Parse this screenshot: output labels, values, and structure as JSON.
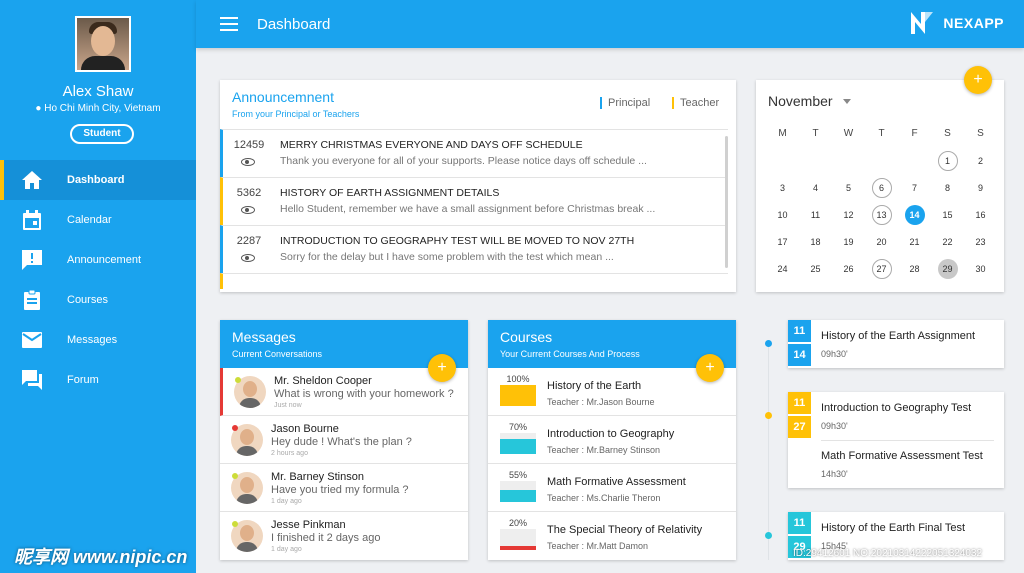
{
  "user": {
    "name": "Alex Shaw",
    "location": "Ho Chi Minh City, Vietnam",
    "role": "Student"
  },
  "nav": [
    {
      "label": "Dashboard",
      "icon": "home-icon"
    },
    {
      "label": "Calendar",
      "icon": "calendar-icon"
    },
    {
      "label": "Announcement",
      "icon": "announcement-icon"
    },
    {
      "label": "Courses",
      "icon": "clipboard-icon"
    },
    {
      "label": "Messages",
      "icon": "mail-icon"
    },
    {
      "label": "Forum",
      "icon": "forum-icon"
    }
  ],
  "header": {
    "title": "Dashboard",
    "brand": "NEXAPP"
  },
  "announcements": {
    "title": "Announcemnent",
    "subtitle": "From your Principal or Teachers",
    "legend": {
      "principal": "Principal",
      "teacher": "Teacher"
    },
    "items": [
      {
        "count": "12459",
        "title": "MERRY CHRISTMAS EVERYONE AND DAYS OFF SCHEDULE",
        "preview": "Thank you everyone for all of your supports. Please notice days off schedule ...",
        "source": "principal"
      },
      {
        "count": "5362",
        "title": "HISTORY OF EARTH ASSIGNMENT DETAILS",
        "preview": "Hello Student, remember we have a small assignment before Christmas break ...",
        "source": "teacher"
      },
      {
        "count": "2287",
        "title": "INTRODUCTION TO GEOGRAPHY TEST WILL BE MOVED TO NOV 27TH",
        "preview": "Sorry for the delay but I have some problem with the test which mean ...",
        "source": "principal"
      }
    ]
  },
  "calendar": {
    "month": "November",
    "add": "+",
    "weekdays": [
      "M",
      "T",
      "W",
      "T",
      "F",
      "S",
      "S"
    ],
    "weeks": [
      [
        "",
        "",
        "",
        "",
        "",
        "1",
        "2"
      ],
      [
        "3",
        "4",
        "5",
        "6",
        "7",
        "8",
        "9"
      ],
      [
        "10",
        "11",
        "12",
        "13",
        "14",
        "15",
        "16"
      ],
      [
        "17",
        "18",
        "19",
        "20",
        "21",
        "22",
        "23"
      ],
      [
        "24",
        "25",
        "26",
        "27",
        "28",
        "29",
        "30"
      ]
    ],
    "ringed": [
      "1",
      "6",
      "13",
      "27"
    ],
    "today": "14",
    "grayed": [
      "29"
    ]
  },
  "messages": {
    "title": "Messages",
    "subtitle": "Current Conversations",
    "add": "+",
    "items": [
      {
        "name": "Mr. Sheldon Cooper",
        "text": "What is wrong with your homework ?",
        "when": "Just now",
        "status": "online"
      },
      {
        "name": "Jason Bourne",
        "text": "Hey dude ! What's the plan ?",
        "when": "2 hours ago",
        "status": "busy"
      },
      {
        "name": "Mr. Barney Stinson",
        "text": "Have you tried my formula ?",
        "when": "1 day ago",
        "status": "online"
      },
      {
        "name": "Jesse Pinkman",
        "text": "I finished it 2 days ago",
        "when": "1 day ago",
        "status": "online"
      }
    ]
  },
  "courses": {
    "title": "Courses",
    "subtitle": "Your Current Courses And Process",
    "add": "+",
    "items": [
      {
        "percent": "100%",
        "progress": 1.0,
        "color": "#ffc107",
        "name": "History of the Earth",
        "teacher": "Teacher : Mr.Jason Bourne"
      },
      {
        "percent": "70%",
        "progress": 0.7,
        "color": "#26c6da",
        "name": "Introduction to Geography",
        "teacher": "Teacher : Mr.Barney Stinson"
      },
      {
        "percent": "55%",
        "progress": 0.55,
        "color": "#26c6da",
        "name": "Math Formative Assessment",
        "teacher": "Teacher : Ms.Charlie Theron"
      },
      {
        "percent": "20%",
        "progress": 0.2,
        "color": "#e53935",
        "name": "The Special Theory of Relativity",
        "teacher": "Teacher : Mr.Matt Damon"
      }
    ]
  },
  "timeline": [
    {
      "month": "11",
      "day": "14",
      "color": "#1aa3ee",
      "events": [
        {
          "title": "History of the Earth Assignment",
          "time": "09h30'"
        }
      ]
    },
    {
      "month": "11",
      "day": "27",
      "color": "#ffc107",
      "events": [
        {
          "title": "Introduction to Geography Test",
          "time": "09h30'"
        },
        {
          "title": "Math Formative Assessment Test",
          "time": "14h30'"
        }
      ]
    },
    {
      "month": "11",
      "day": "29",
      "color": "#26c6da",
      "events": [
        {
          "title": "History of the Earth Final Test",
          "time": "15h45'"
        }
      ]
    }
  ],
  "watermark": {
    "logo": "昵享网 www.nipic.cn",
    "id": "ID:29412601 NO:20210314222051324032"
  }
}
